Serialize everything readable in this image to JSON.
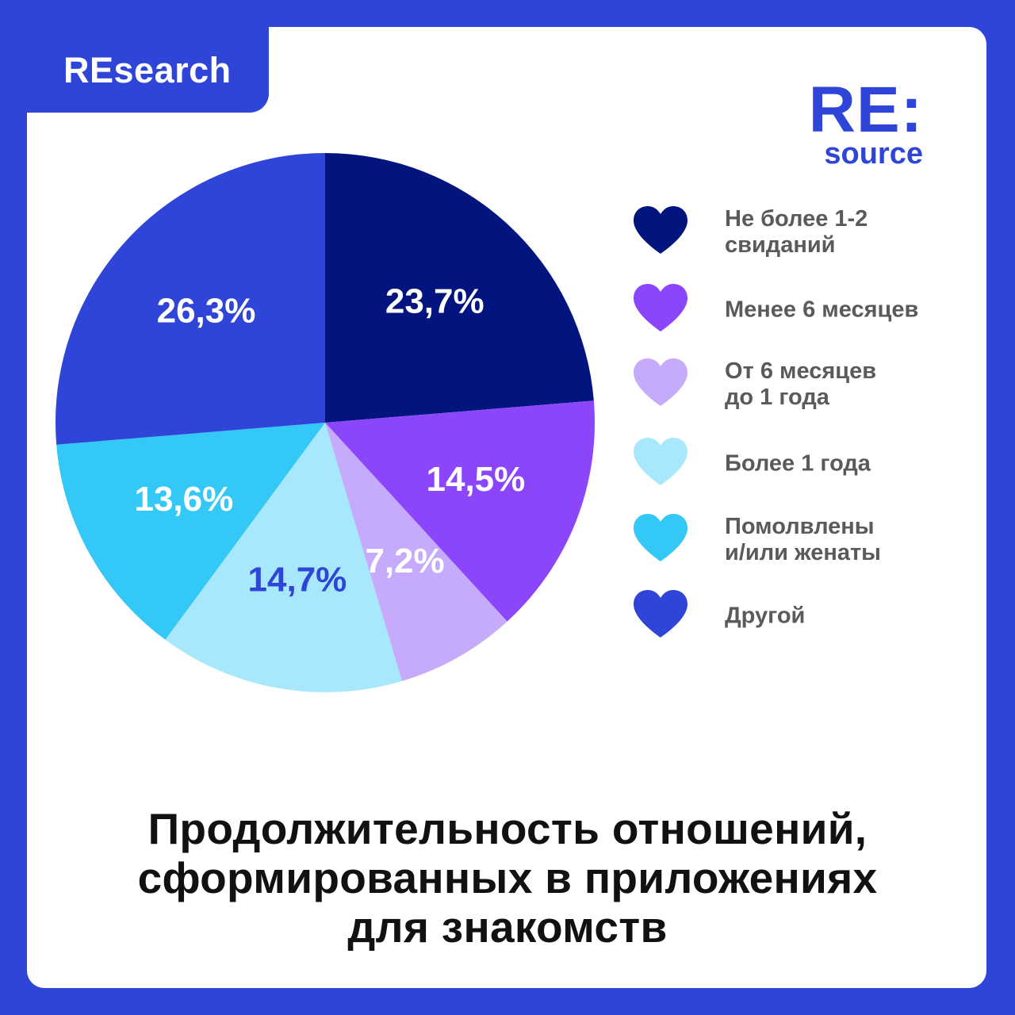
{
  "badge": {
    "label": "REsearch"
  },
  "logo": {
    "main": "RE:",
    "sub": "source"
  },
  "colors": {
    "background": "#2f45d8",
    "card": "#ffffff",
    "brand": "#2f45d8"
  },
  "chart_data": {
    "type": "pie",
    "title": "Продолжительность отношений, сформированных в приложениях для знакомств",
    "title_lines": [
      "Продолжительность отношений,",
      "сформированных в приложениях",
      "для знакомств"
    ],
    "legend_position": "right",
    "slices": [
      {
        "name": "Не более 1-2 свиданий",
        "value": 23.7,
        "display": "23,7%",
        "color": "#02147e",
        "label_color": "#ffffff",
        "icon": "heart-icon"
      },
      {
        "name": "Менее 6 месяцев",
        "value": 14.5,
        "display": "14,5%",
        "color": "#8b45fb",
        "label_color": "#ffffff",
        "icon": "heart-icon"
      },
      {
        "name": "От 6 месяцев до 1 года",
        "value": 7.2,
        "display": "7,2%",
        "color": "#c6aafc",
        "label_color": "#ffffff",
        "icon": "heart-icon"
      },
      {
        "name": "Более 1 года",
        "value": 14.7,
        "display": "14,7%",
        "color": "#a8e8fc",
        "label_color": "#2f45d8",
        "icon": "heart-icon"
      },
      {
        "name": "Помолвлены и/или женаты",
        "value": 13.6,
        "display": "13,6%",
        "color": "#34c8f7",
        "label_color": "#ffffff",
        "icon": "heart-icon"
      },
      {
        "name": "Другой",
        "value": 26.3,
        "display": "26,3%",
        "color": "#2f45d8",
        "label_color": "#ffffff",
        "icon": "heart-icon"
      }
    ],
    "legend": [
      {
        "lines": [
          "Не более 1-2",
          "свиданий"
        ]
      },
      {
        "lines": [
          "Менее 6 месяцев"
        ]
      },
      {
        "lines": [
          "От 6 месяцев",
          "до 1 года"
        ]
      },
      {
        "lines": [
          "Более 1 года"
        ]
      },
      {
        "lines": [
          "Помолвлены",
          "и/или женаты"
        ]
      },
      {
        "lines": [
          "Другой"
        ]
      }
    ]
  }
}
